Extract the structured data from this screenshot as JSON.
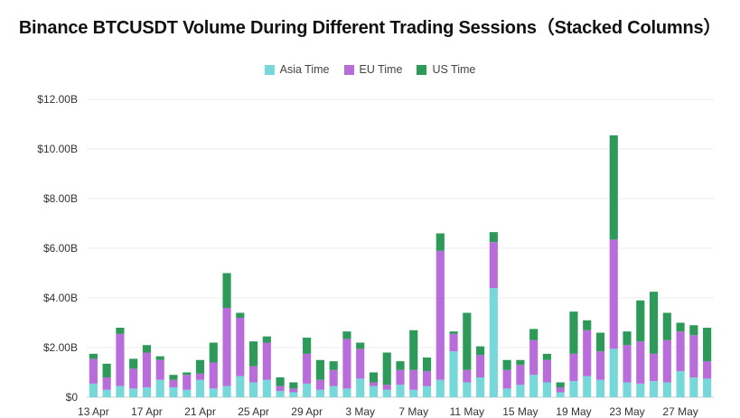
{
  "chart_data": {
    "type": "bar",
    "stacked": true,
    "title": "Binance BTCUSDT Volume During Different Trading Sessions（Stacked Columns）",
    "legend_position": "top",
    "grid": true,
    "ylim": [
      0,
      12
    ],
    "y_ticks": [
      {
        "value": 0,
        "label": "$0"
      },
      {
        "value": 2,
        "label": "$2.00B"
      },
      {
        "value": 4,
        "label": "$4.00B"
      },
      {
        "value": 6,
        "label": "$6.00B"
      },
      {
        "value": 8,
        "label": "$8.00B"
      },
      {
        "value": 10,
        "label": "$10.00B"
      },
      {
        "value": 12,
        "label": "$12.00B"
      }
    ],
    "categories": [
      "13 Apr",
      "14 Apr",
      "15 Apr",
      "16 Apr",
      "17 Apr",
      "18 Apr",
      "19 Apr",
      "20 Apr",
      "21 Apr",
      "22 Apr",
      "23 Apr",
      "24 Apr",
      "25 Apr",
      "26 Apr",
      "27 Apr",
      "28 Apr",
      "29 Apr",
      "30 Apr",
      "1 May",
      "2 May",
      "3 May",
      "4 May",
      "5 May",
      "6 May",
      "7 May",
      "8 May",
      "9 May",
      "10 May",
      "11 May",
      "12 May",
      "13 May",
      "14 May",
      "15 May",
      "16 May",
      "17 May",
      "18 May",
      "19 May",
      "20 May",
      "21 May",
      "22 May",
      "23 May",
      "24 May",
      "25 May",
      "26 May",
      "27 May",
      "28 May",
      "29 May"
    ],
    "x_tick_labels": [
      {
        "index": 0,
        "label": "13 Apr"
      },
      {
        "index": 4,
        "label": "17 Apr"
      },
      {
        "index": 8,
        "label": "21 Apr"
      },
      {
        "index": 12,
        "label": "25 Apr"
      },
      {
        "index": 16,
        "label": "29 Apr"
      },
      {
        "index": 20,
        "label": "3 May"
      },
      {
        "index": 24,
        "label": "7 May"
      },
      {
        "index": 28,
        "label": "11 May"
      },
      {
        "index": 32,
        "label": "15 May"
      },
      {
        "index": 36,
        "label": "19 May"
      },
      {
        "index": 40,
        "label": "23 May"
      },
      {
        "index": 44,
        "label": "27 May"
      }
    ],
    "series": [
      {
        "name": "Asia Time",
        "color": "#77d8da",
        "values": [
          0.55,
          0.3,
          0.45,
          0.35,
          0.4,
          0.7,
          0.4,
          0.3,
          0.7,
          0.35,
          0.45,
          0.85,
          0.6,
          0.7,
          0.25,
          0.2,
          0.55,
          0.3,
          0.45,
          0.35,
          0.75,
          0.45,
          0.3,
          0.5,
          0.3,
          0.45,
          0.7,
          1.85,
          0.6,
          0.8,
          4.4,
          0.35,
          0.5,
          0.9,
          0.6,
          0.2,
          0.65,
          0.85,
          0.7,
          1.95,
          0.6,
          0.55,
          0.65,
          0.6,
          1.05,
          0.8,
          0.75
        ]
      },
      {
        "name": "EU Time",
        "color": "#b86ddb",
        "values": [
          1.0,
          0.5,
          2.1,
          0.8,
          1.4,
          0.8,
          0.3,
          0.6,
          0.25,
          1.05,
          3.15,
          2.35,
          0.65,
          1.5,
          0.2,
          0.15,
          1.2,
          0.4,
          0.65,
          2.0,
          1.2,
          0.15,
          0.2,
          0.6,
          0.8,
          0.6,
          5.2,
          0.7,
          0.5,
          0.9,
          1.85,
          0.75,
          0.8,
          1.4,
          0.9,
          0.2,
          1.1,
          1.85,
          1.15,
          4.4,
          1.5,
          1.7,
          1.1,
          1.7,
          1.6,
          1.7,
          0.7
        ]
      },
      {
        "name": "US Time",
        "color": "#2d9a5a",
        "values": [
          0.2,
          0.55,
          0.25,
          0.4,
          0.3,
          0.15,
          0.2,
          0.1,
          0.55,
          0.8,
          1.4,
          0.2,
          1.0,
          0.25,
          0.35,
          0.25,
          0.65,
          0.8,
          0.35,
          0.3,
          0.25,
          0.4,
          1.3,
          0.35,
          1.6,
          0.55,
          0.7,
          0.1,
          2.3,
          0.35,
          0.4,
          0.4,
          0.2,
          0.45,
          0.25,
          0.2,
          1.7,
          0.4,
          0.75,
          4.2,
          0.55,
          1.65,
          2.5,
          1.1,
          0.35,
          0.4,
          1.35
        ]
      }
    ]
  }
}
